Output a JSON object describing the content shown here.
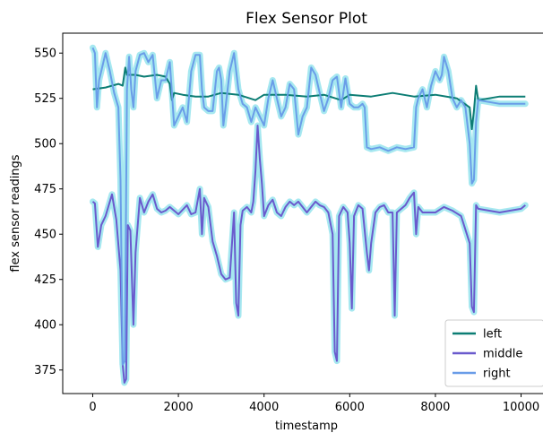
{
  "chart_data": {
    "type": "line",
    "title": "Flex Sensor Plot",
    "xlabel": "timestamp",
    "ylabel": "flex sensor readings",
    "xlim": [
      -700,
      10700
    ],
    "ylim": [
      362,
      561
    ],
    "xticks": [
      0,
      2000,
      4000,
      6000,
      8000,
      10000
    ],
    "yticks": [
      375,
      400,
      425,
      450,
      475,
      500,
      525,
      550
    ],
    "legend_position": "lower-right",
    "highlight_color": "#a6e8f0",
    "series": [
      {
        "name": "left",
        "color": "#0c7d74",
        "points": [
          [
            0,
            530
          ],
          [
            300,
            531
          ],
          [
            600,
            533
          ],
          [
            700,
            532
          ],
          [
            760,
            542
          ],
          [
            800,
            538
          ],
          [
            1000,
            538
          ],
          [
            1200,
            537
          ],
          [
            1500,
            538
          ],
          [
            1700,
            537
          ],
          [
            1800,
            533
          ],
          [
            1850,
            524
          ],
          [
            1900,
            528
          ],
          [
            2100,
            527
          ],
          [
            2400,
            526
          ],
          [
            2700,
            526
          ],
          [
            3000,
            528
          ],
          [
            3400,
            527
          ],
          [
            3800,
            524
          ],
          [
            4000,
            527
          ],
          [
            4500,
            527
          ],
          [
            5000,
            526
          ],
          [
            5400,
            527
          ],
          [
            5800,
            524
          ],
          [
            6000,
            527
          ],
          [
            6500,
            526
          ],
          [
            7000,
            528
          ],
          [
            7500,
            526
          ],
          [
            8000,
            527
          ],
          [
            8500,
            525
          ],
          [
            8800,
            520
          ],
          [
            8850,
            508
          ],
          [
            8900,
            518
          ],
          [
            8950,
            532
          ],
          [
            9000,
            524
          ],
          [
            9500,
            526
          ],
          [
            10100,
            526
          ]
        ]
      },
      {
        "name": "middle",
        "color": "#6a5acd",
        "points": [
          [
            0,
            468
          ],
          [
            50,
            467
          ],
          [
            120,
            443
          ],
          [
            200,
            455
          ],
          [
            300,
            460
          ],
          [
            450,
            472
          ],
          [
            550,
            458
          ],
          [
            650,
            430
          ],
          [
            700,
            378
          ],
          [
            740,
            368
          ],
          [
            780,
            370
          ],
          [
            820,
            455
          ],
          [
            880,
            452
          ],
          [
            950,
            400
          ],
          [
            1000,
            440
          ],
          [
            1100,
            470
          ],
          [
            1200,
            462
          ],
          [
            1300,
            468
          ],
          [
            1400,
            472
          ],
          [
            1500,
            464
          ],
          [
            1600,
            462
          ],
          [
            1700,
            463
          ],
          [
            1800,
            465
          ],
          [
            2000,
            461
          ],
          [
            2200,
            466
          ],
          [
            2300,
            461
          ],
          [
            2400,
            462
          ],
          [
            2500,
            475
          ],
          [
            2550,
            450
          ],
          [
            2600,
            470
          ],
          [
            2700,
            465
          ],
          [
            2800,
            446
          ],
          [
            2900,
            438
          ],
          [
            3000,
            428
          ],
          [
            3100,
            425
          ],
          [
            3200,
            426
          ],
          [
            3300,
            462
          ],
          [
            3350,
            412
          ],
          [
            3400,
            405
          ],
          [
            3450,
            455
          ],
          [
            3500,
            463
          ],
          [
            3600,
            465
          ],
          [
            3700,
            462
          ],
          [
            3750,
            468
          ],
          [
            3800,
            485
          ],
          [
            3850,
            510
          ],
          [
            3900,
            492
          ],
          [
            3950,
            478
          ],
          [
            4000,
            460
          ],
          [
            4100,
            466
          ],
          [
            4200,
            469
          ],
          [
            4300,
            462
          ],
          [
            4400,
            460
          ],
          [
            4500,
            465
          ],
          [
            4600,
            468
          ],
          [
            4700,
            466
          ],
          [
            4800,
            468
          ],
          [
            4900,
            465
          ],
          [
            5000,
            462
          ],
          [
            5100,
            465
          ],
          [
            5200,
            468
          ],
          [
            5300,
            466
          ],
          [
            5400,
            465
          ],
          [
            5500,
            462
          ],
          [
            5600,
            450
          ],
          [
            5650,
            385
          ],
          [
            5700,
            380
          ],
          [
            5750,
            460
          ],
          [
            5850,
            465
          ],
          [
            5950,
            462
          ],
          [
            6000,
            445
          ],
          [
            6050,
            409
          ],
          [
            6100,
            460
          ],
          [
            6200,
            466
          ],
          [
            6300,
            464
          ],
          [
            6400,
            440
          ],
          [
            6450,
            430
          ],
          [
            6500,
            445
          ],
          [
            6600,
            462
          ],
          [
            6700,
            465
          ],
          [
            6800,
            466
          ],
          [
            6900,
            462
          ],
          [
            7000,
            462
          ],
          [
            7050,
            405
          ],
          [
            7100,
            462
          ],
          [
            7300,
            466
          ],
          [
            7400,
            470
          ],
          [
            7500,
            473
          ],
          [
            7550,
            450
          ],
          [
            7600,
            465
          ],
          [
            7700,
            462
          ],
          [
            7800,
            462
          ],
          [
            8000,
            462
          ],
          [
            8200,
            465
          ],
          [
            8400,
            463
          ],
          [
            8600,
            460
          ],
          [
            8800,
            445
          ],
          [
            8850,
            410
          ],
          [
            8900,
            407
          ],
          [
            8950,
            466
          ],
          [
            9000,
            464
          ],
          [
            9500,
            462
          ],
          [
            10000,
            464
          ],
          [
            10100,
            466
          ]
        ]
      },
      {
        "name": "right",
        "color": "#6a9de8",
        "points": [
          [
            0,
            553
          ],
          [
            50,
            550
          ],
          [
            100,
            520
          ],
          [
            150,
            535
          ],
          [
            300,
            550
          ],
          [
            400,
            540
          ],
          [
            500,
            528
          ],
          [
            600,
            520
          ],
          [
            650,
            480
          ],
          [
            700,
            378
          ],
          [
            750,
            380
          ],
          [
            800,
            530
          ],
          [
            850,
            548
          ],
          [
            900,
            530
          ],
          [
            950,
            520
          ],
          [
            1000,
            540
          ],
          [
            1100,
            549
          ],
          [
            1200,
            550
          ],
          [
            1300,
            545
          ],
          [
            1400,
            549
          ],
          [
            1500,
            525
          ],
          [
            1600,
            535
          ],
          [
            1700,
            535
          ],
          [
            1800,
            545
          ],
          [
            1850,
            528
          ],
          [
            1900,
            510
          ],
          [
            2000,
            515
          ],
          [
            2100,
            520
          ],
          [
            2200,
            512
          ],
          [
            2300,
            540
          ],
          [
            2400,
            549
          ],
          [
            2500,
            549
          ],
          [
            2550,
            530
          ],
          [
            2600,
            520
          ],
          [
            2700,
            518
          ],
          [
            2800,
            518
          ],
          [
            2900,
            540
          ],
          [
            2950,
            542
          ],
          [
            3000,
            535
          ],
          [
            3050,
            510
          ],
          [
            3100,
            520
          ],
          [
            3200,
            540
          ],
          [
            3300,
            550
          ],
          [
            3400,
            530
          ],
          [
            3500,
            522
          ],
          [
            3600,
            520
          ],
          [
            3700,
            512
          ],
          [
            3800,
            520
          ],
          [
            3900,
            515
          ],
          [
            4000,
            510
          ],
          [
            4100,
            525
          ],
          [
            4200,
            535
          ],
          [
            4300,
            525
          ],
          [
            4400,
            515
          ],
          [
            4500,
            520
          ],
          [
            4600,
            533
          ],
          [
            4700,
            530
          ],
          [
            4800,
            505
          ],
          [
            4900,
            515
          ],
          [
            5000,
            520
          ],
          [
            5100,
            542
          ],
          [
            5200,
            538
          ],
          [
            5300,
            528
          ],
          [
            5400,
            518
          ],
          [
            5500,
            525
          ],
          [
            5600,
            535
          ],
          [
            5700,
            537
          ],
          [
            5800,
            520
          ],
          [
            5900,
            536
          ],
          [
            6000,
            522
          ],
          [
            6100,
            520
          ],
          [
            6200,
            520
          ],
          [
            6300,
            522
          ],
          [
            6350,
            520
          ],
          [
            6400,
            498
          ],
          [
            6500,
            497
          ],
          [
            6700,
            498
          ],
          [
            6900,
            496
          ],
          [
            7100,
            498
          ],
          [
            7300,
            497
          ],
          [
            7500,
            498
          ],
          [
            7550,
            520
          ],
          [
            7600,
            525
          ],
          [
            7700,
            530
          ],
          [
            7800,
            520
          ],
          [
            7900,
            532
          ],
          [
            8000,
            540
          ],
          [
            8100,
            535
          ],
          [
            8150,
            538
          ],
          [
            8200,
            548
          ],
          [
            8300,
            540
          ],
          [
            8400,
            525
          ],
          [
            8500,
            520
          ],
          [
            8600,
            524
          ],
          [
            8700,
            520
          ],
          [
            8800,
            500
          ],
          [
            8850,
            478
          ],
          [
            8900,
            480
          ],
          [
            8950,
            512
          ],
          [
            9000,
            524
          ],
          [
            9500,
            522
          ],
          [
            10100,
            522
          ]
        ]
      }
    ]
  }
}
